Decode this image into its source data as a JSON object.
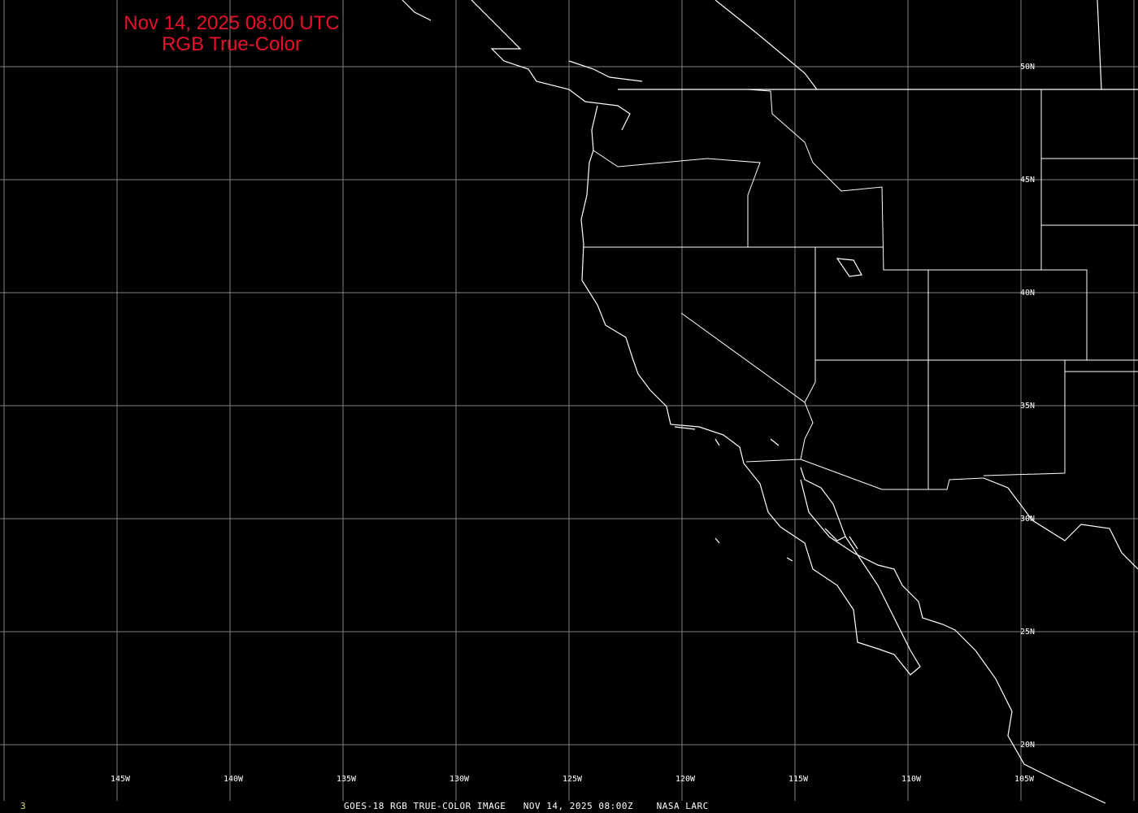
{
  "title": {
    "line1": "Nov 14, 2025 08:00 UTC",
    "line2": "RGB True-Color"
  },
  "title_color": "#e8102a",
  "map": {
    "longitude_labels": [
      "145W",
      "140W",
      "135W",
      "130W",
      "125W",
      "120W",
      "115W",
      "110W",
      "105W"
    ],
    "latitude_labels": [
      "50N",
      "45N",
      "40N",
      "35N",
      "30N",
      "25N",
      "20N"
    ],
    "background_color": "#000000",
    "gridline_color": "#808080",
    "outline_color": "#ffffff"
  },
  "footer": {
    "frame_number": "3",
    "caption": "GOES-18 RGB TRUE-COLOR IMAGE   NOV 14, 2025 08:00Z    NASA LARC"
  }
}
